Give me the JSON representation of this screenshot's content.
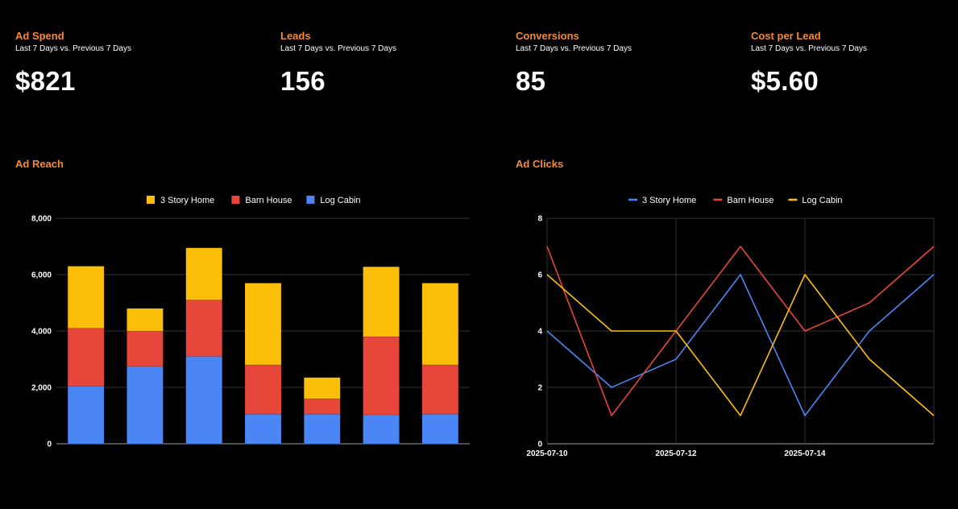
{
  "theme": {
    "accent": "#f58a34",
    "background": "#000000",
    "text": "#ffffff",
    "grid": "#333333"
  },
  "kpis": [
    {
      "title": "Ad Spend",
      "subtitle": "Last 7 Days vs. Previous 7 Days",
      "value": "$821"
    },
    {
      "title": "Leads",
      "subtitle": "Last 7 Days vs. Previous 7 Days",
      "value": "156"
    },
    {
      "title": "Conversions",
      "subtitle": "Last 7 Days vs. Previous 7 Days",
      "value": "85"
    },
    {
      "title": "Cost per Lead",
      "subtitle": "Last 7 Days vs. Previous 7 Days",
      "value": "$5.60"
    }
  ],
  "chart_data": [
    {
      "type": "bar",
      "stacked": true,
      "title": "Ad Reach",
      "legend_position": "top",
      "grid": true,
      "ylim": [
        0,
        8000
      ],
      "yticks": [
        0,
        2000,
        4000,
        6000,
        8000
      ],
      "ytick_labels": [
        "0",
        "2,000",
        "4,000",
        "6,000",
        "8,000"
      ],
      "categories": [
        "",
        "",
        "",
        "",
        "",
        "",
        ""
      ],
      "series": [
        {
          "name": "Log Cabin",
          "color": "#4a86f5",
          "values": [
            2050,
            2750,
            3100,
            1050,
            1050,
            1030,
            1050
          ]
        },
        {
          "name": "Barn House",
          "color": "#e7463a",
          "values": [
            2050,
            1250,
            2000,
            1750,
            550,
            2770,
            1750
          ]
        },
        {
          "name": "3 Story Home",
          "color": "#fbbf0a",
          "values": [
            2200,
            800,
            1850,
            2900,
            750,
            2480,
            2900
          ]
        }
      ],
      "legend_order": [
        "3 Story Home",
        "Barn House",
        "Log Cabin"
      ]
    },
    {
      "type": "line",
      "title": "Ad Clicks",
      "legend_position": "top",
      "grid": true,
      "ylim": [
        0,
        8
      ],
      "yticks": [
        0,
        2,
        4,
        6,
        8
      ],
      "ytick_labels": [
        "0",
        "2",
        "4",
        "6",
        "8"
      ],
      "x": [
        "2025-07-10",
        "2025-07-11",
        "2025-07-12",
        "2025-07-13",
        "2025-07-14",
        "2025-07-15",
        "2025-07-16"
      ],
      "xtick_labels": [
        "2025-07-10",
        "2025-07-12",
        "2025-07-14"
      ],
      "series": [
        {
          "name": "3 Story Home",
          "color": "#4a86f5",
          "values": [
            4,
            2,
            3,
            6,
            1,
            4,
            6
          ]
        },
        {
          "name": "Barn House",
          "color": "#e7463a",
          "values": [
            7,
            1,
            4,
            7,
            4,
            5,
            7
          ]
        },
        {
          "name": "Log Cabin",
          "color": "#fbbf0a",
          "values": [
            6,
            4,
            4,
            1,
            6,
            3,
            1
          ]
        }
      ]
    }
  ]
}
